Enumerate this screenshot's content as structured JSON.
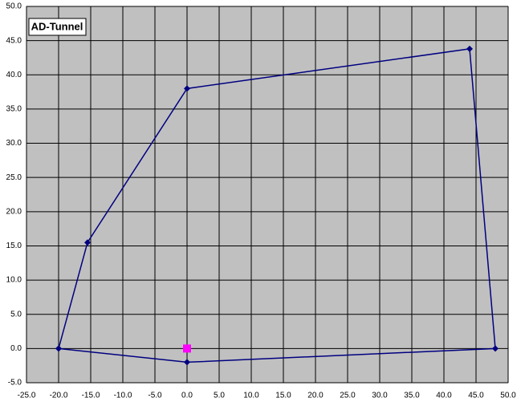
{
  "chart_data": {
    "type": "scatter-line",
    "title": "AD-Tunnel",
    "series": [
      {
        "color": "#000080",
        "marker": "diamond",
        "line": true,
        "x": [
          -20,
          -15.5,
          0,
          44,
          48,
          0,
          -20
        ],
        "values": [
          0,
          15.5,
          38,
          43.8,
          0,
          -2,
          0
        ]
      },
      {
        "color": "#ff00ff",
        "marker": "square",
        "line": false,
        "x": [
          0
        ],
        "values": [
          0
        ]
      }
    ],
    "xlim": [
      -25,
      50
    ],
    "xticks": [
      {
        "value": -25,
        "label": "-25.0"
      },
      {
        "value": -20,
        "label": "-20.0"
      },
      {
        "value": -15,
        "label": "-15.0"
      },
      {
        "value": -10,
        "label": "-10.0"
      },
      {
        "value": -5,
        "label": "-5.0"
      },
      {
        "value": 0,
        "label": "0.0"
      },
      {
        "value": 5,
        "label": "5.0"
      },
      {
        "value": 10,
        "label": "10.0"
      },
      {
        "value": 15,
        "label": "15.0"
      },
      {
        "value": 20,
        "label": "20.0"
      },
      {
        "value": 25,
        "label": "25.0"
      },
      {
        "value": 30,
        "label": "30.0"
      },
      {
        "value": 35,
        "label": "35.0"
      },
      {
        "value": 40,
        "label": "40.0"
      },
      {
        "value": 45,
        "label": "45.0"
      },
      {
        "value": 50,
        "label": "50.0"
      }
    ],
    "ylim": [
      -5,
      50
    ],
    "yticks": [
      {
        "value": -5,
        "label": "-5.0"
      },
      {
        "value": 0,
        "label": "0.0"
      },
      {
        "value": 5,
        "label": "5.0"
      },
      {
        "value": 10,
        "label": "10.0"
      },
      {
        "value": 15,
        "label": "15.0"
      },
      {
        "value": 20,
        "label": "20.0"
      },
      {
        "value": 25,
        "label": "25.0"
      },
      {
        "value": 30,
        "label": "30.0"
      },
      {
        "value": 35,
        "label": "35.0"
      },
      {
        "value": 40,
        "label": "40.0"
      },
      {
        "value": 45,
        "label": "45.0"
      },
      {
        "value": 50,
        "label": "50.0"
      }
    ],
    "grid": true,
    "background": "#c0c0c0"
  }
}
